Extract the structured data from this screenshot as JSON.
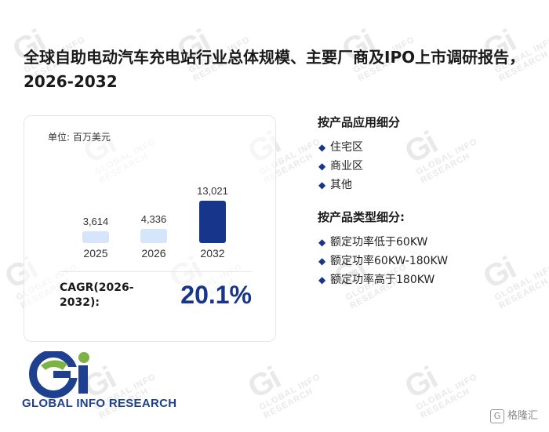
{
  "title": "全球自助电动汽车充电站行业总体规模、主要厂商及IPO上市调研报告，2026-2032",
  "unit_label": "单位: 百万美元",
  "chart_data": {
    "type": "bar",
    "categories": [
      "2025",
      "2026",
      "2032"
    ],
    "values": [
      3614,
      4336,
      13021
    ],
    "value_labels": [
      "3,614",
      "4,336",
      "13,021"
    ],
    "colors": [
      "#d6e6fa",
      "#d6e6fa",
      "#17358a"
    ],
    "ylabel": "",
    "ylim": [
      0,
      13021
    ]
  },
  "cagr": {
    "label": "CAGR(2026-2032):",
    "value": "20.1%"
  },
  "sections": [
    {
      "title": "按产品应用细分",
      "items": [
        "住宅区",
        "商业区",
        "其他"
      ]
    },
    {
      "title": "按产品类型细分:",
      "items": [
        "额定功率低于60KW",
        "额定功率60KW-180KW",
        "额定功率高于180KW"
      ]
    }
  ],
  "logo": {
    "mark": "Gi",
    "text": "GLOBAL INFO RESEARCH"
  },
  "watermark": {
    "mark": "Gi",
    "text": "GLOBAL INFO RESEARCH"
  },
  "source_badge": {
    "icon": "G",
    "text": "格隆汇"
  },
  "bullet_icon": "◆",
  "accent_color": "#17358a"
}
